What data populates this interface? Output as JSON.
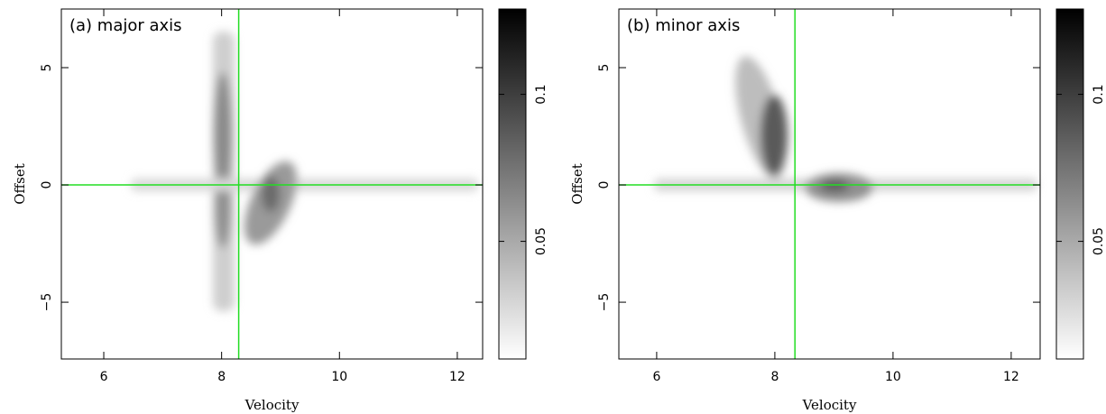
{
  "chart_data": [
    {
      "type": "contour",
      "title": "(a) major axis",
      "x_label": "Velocity",
      "y_label": "Offset",
      "xlim": [
        5.28,
        12.43
      ],
      "xticks": [
        6,
        8,
        10,
        12
      ],
      "ylim": [
        -7.42,
        7.5
      ],
      "yticks": [
        {
          "value": -5,
          "label": "−5"
        },
        0,
        5
      ],
      "clim": [
        0.01,
        0.129
      ],
      "cticks": [
        0.05,
        0.1
      ],
      "vline": 8.29,
      "hline": 0,
      "line_color": "#22dd22"
    },
    {
      "type": "contour",
      "title": "(b) minor axis",
      "x_label": "Velocity",
      "y_label": "Offset",
      "xlim": [
        5.36,
        12.49
      ],
      "xticks": [
        6,
        8,
        10,
        12
      ],
      "ylim": [
        -7.42,
        7.5
      ],
      "yticks": [
        {
          "value": -5,
          "label": "−5"
        },
        0,
        5
      ],
      "clim": [
        0.01,
        0.129
      ],
      "cticks": [
        0.05,
        0.1
      ],
      "vline": 8.34,
      "hline": 0,
      "line_color": "#22dd22"
    }
  ]
}
